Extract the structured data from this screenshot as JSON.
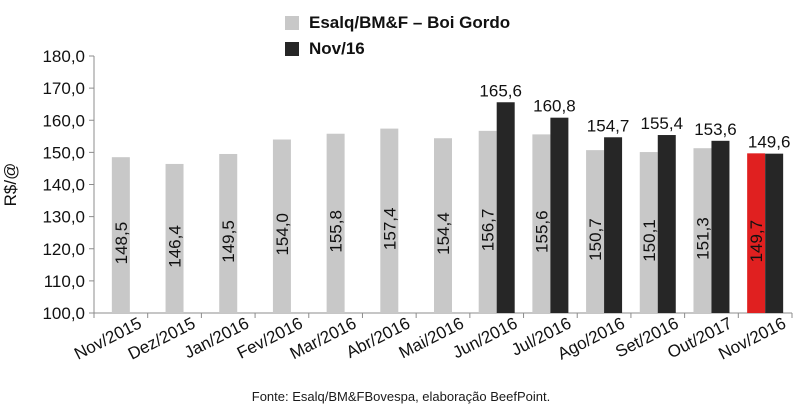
{
  "chart_data": {
    "type": "bar",
    "ylabel": "R$/@",
    "ylim": [
      100,
      180
    ],
    "yticks": [
      "100,0",
      "110,0",
      "120,0",
      "130,0",
      "140,0",
      "150,0",
      "160,0",
      "170,0",
      "180,0"
    ],
    "yticks_values": [
      100,
      110,
      120,
      130,
      140,
      150,
      160,
      170,
      180
    ],
    "categories": [
      "Nov/2015",
      "Dez/2015",
      "Jan/2016",
      "Fev/2016",
      "Mar/2016",
      "Abr/2016",
      "Mai/2016",
      "Jun/2016",
      "Jul/2016",
      "Ago/2016",
      "Set/2016",
      "Out/2017",
      "Nov/2016"
    ],
    "series": [
      {
        "name": "Esalq/BM&F – Boi Gordo",
        "color": "#c8c8c8",
        "highlight_color": "#e02020",
        "highlight_index": 12,
        "values": [
          148.5,
          146.4,
          149.5,
          154.0,
          155.8,
          157.4,
          154.4,
          156.7,
          155.6,
          150.7,
          150.1,
          151.3,
          149.7
        ],
        "labels": [
          "148,5",
          "146,4",
          "149,5",
          "154,0",
          "155,8",
          "157,4",
          "154,4",
          "156,7",
          "155,6",
          "150,7",
          "150,1",
          "151,3",
          "149,7"
        ]
      },
      {
        "name": "Nov/16",
        "color": "#262626",
        "values": [
          null,
          null,
          null,
          null,
          null,
          null,
          null,
          165.6,
          160.8,
          154.7,
          155.4,
          153.6,
          149.6
        ],
        "labels": [
          "",
          "",
          "",
          "",
          "",
          "",
          "",
          "165,6",
          "160,8",
          "154,7",
          "155,4",
          "153,6",
          "149,6"
        ]
      }
    ],
    "legend_position": "top-center",
    "grid": false
  },
  "source": "Fonte: Esalq/BM&FBovespa, elaboração BeefPoint."
}
